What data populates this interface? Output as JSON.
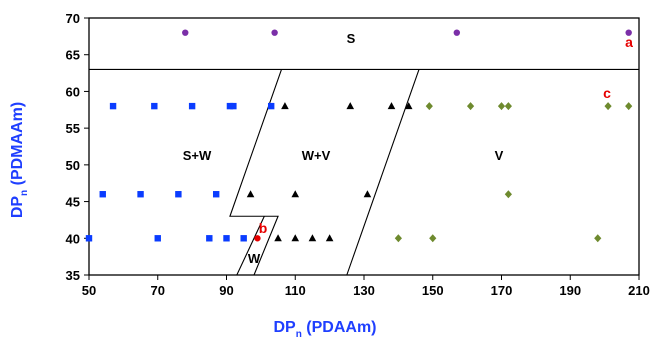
{
  "chart_data": {
    "type": "scatter",
    "xlim": [
      50,
      210
    ],
    "ylim": [
      35,
      70
    ],
    "x_ticks": [
      "50",
      "70",
      "90",
      "110",
      "130",
      "150",
      "170",
      "190",
      "210"
    ],
    "y_ticks": [
      "35",
      "40",
      "45",
      "50",
      "55",
      "60",
      "65",
      "70"
    ],
    "xlabel": {
      "main": "DP",
      "sub": "n",
      "rest": " (PDAAm)"
    },
    "ylabel": {
      "main": "DP",
      "sub": "n",
      "rest": " (PDMAAm)"
    },
    "grid": false,
    "legend": "none",
    "colors": {
      "axis_label": "#1f3fff",
      "annotation": "#e60000"
    },
    "series": [
      {
        "marker": "circle",
        "color": "#7b2fa8",
        "points": [
          [
            78,
            68
          ],
          [
            104,
            68
          ],
          [
            157,
            68
          ],
          [
            207,
            68
          ]
        ]
      },
      {
        "marker": "square",
        "color": "#0a3cff",
        "points": [
          [
            57,
            58
          ],
          [
            69,
            58
          ],
          [
            80,
            58
          ],
          [
            91,
            58
          ],
          [
            92,
            58
          ],
          [
            103,
            58
          ],
          [
            54,
            46
          ],
          [
            65,
            46
          ],
          [
            76,
            46
          ],
          [
            87,
            46
          ],
          [
            50,
            40
          ],
          [
            70,
            40
          ],
          [
            85,
            40
          ],
          [
            90,
            40
          ],
          [
            95,
            40
          ]
        ]
      },
      {
        "marker": "triangle",
        "color": "#000000",
        "points": [
          [
            107,
            58
          ],
          [
            126,
            58
          ],
          [
            138,
            58
          ],
          [
            143,
            58
          ],
          [
            97,
            46
          ],
          [
            110,
            46
          ],
          [
            131,
            46
          ],
          [
            105,
            40
          ],
          [
            110,
            40
          ],
          [
            115,
            40
          ],
          [
            120,
            40
          ]
        ]
      },
      {
        "marker": "diamond",
        "color": "#6e8a2e",
        "points": [
          [
            149,
            58
          ],
          [
            161,
            58
          ],
          [
            170,
            58
          ],
          [
            172,
            58
          ],
          [
            201,
            58
          ],
          [
            207,
            58
          ],
          [
            172,
            46
          ],
          [
            140,
            40
          ],
          [
            150,
            40
          ],
          [
            198,
            40
          ]
        ]
      },
      {
        "marker": "circle",
        "color": "#e60000",
        "points": [
          [
            99,
            40
          ]
        ]
      }
    ],
    "region_labels": [
      "S",
      "S+W",
      "W+V",
      "V",
      "W"
    ],
    "annotations": [
      "a",
      "b",
      "c"
    ],
    "boundaries": [
      {
        "points": [
          [
            50,
            63
          ],
          [
            210,
            63
          ]
        ]
      },
      {
        "points": [
          [
            106,
            63
          ],
          [
            91,
            43
          ],
          [
            105,
            43
          ],
          [
            98,
            35
          ]
        ]
      },
      {
        "points": [
          [
            146,
            63
          ],
          [
            125,
            35
          ]
        ]
      },
      {
        "points": [
          [
            101,
            43
          ],
          [
            93,
            35
          ]
        ]
      }
    ]
  }
}
